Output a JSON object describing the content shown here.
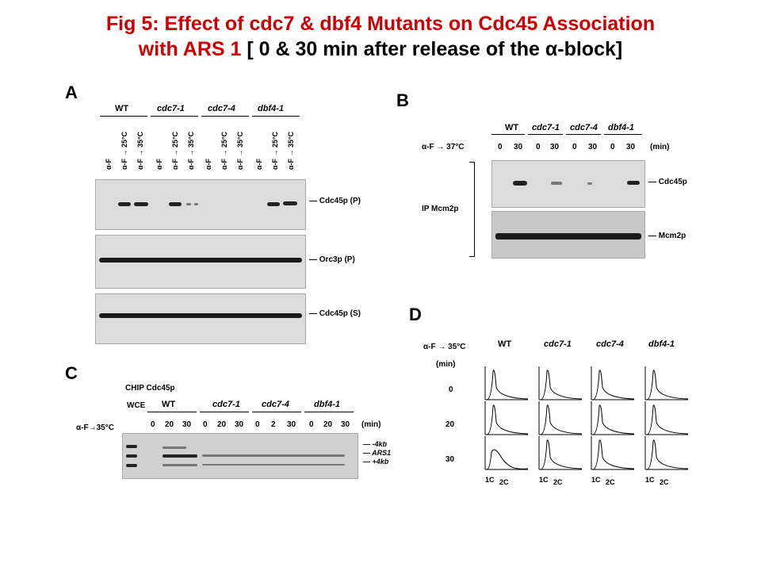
{
  "title": {
    "line1": "Fig 5: Effect of cdc7 & dbf4 Mutants on Cdc45 Association",
    "line2_red": "with ARS 1",
    "line2_rest": " [ 0 & 30 min after release of the  α-block]"
  },
  "panelA": {
    "label": "A",
    "groups": [
      "WT",
      "cdc7-1",
      "cdc7-4",
      "dbf4-1"
    ],
    "lanes": [
      "α-F",
      "α-F → 25°C",
      "α-F → 35°C"
    ],
    "rows": [
      "Cdc45p (P)",
      "Orc3p (P)",
      "Cdc45p (S)"
    ]
  },
  "panelB": {
    "label": "B",
    "groups": [
      "WT",
      "cdc7-1",
      "cdc7-4",
      "dbf4-1"
    ],
    "condition": "α-F → 37°C",
    "times": [
      "0",
      "30",
      "0",
      "30",
      "0",
      "30",
      "0",
      "30"
    ],
    "unit": "(min)",
    "side": "IP Mcm2p",
    "rows": [
      "Cdc45p",
      "Mcm2p"
    ]
  },
  "panelC": {
    "label": "C",
    "chip": "CHIP Cdc45p",
    "wce": "WCE",
    "groups": [
      "WT",
      "cdc7-1",
      "cdc7-4",
      "dbf4-1"
    ],
    "condition": "α-F→35°C",
    "times": [
      "0",
      "20",
      "30",
      "0",
      "20",
      "30",
      "0",
      "2",
      "30",
      "0",
      "20",
      "30"
    ],
    "unit": "(min)",
    "markers": [
      "-4kb",
      "ARS1",
      "+4kb"
    ]
  },
  "panelD": {
    "label": "D",
    "condition": "α-F → 35°C",
    "unit": "(min)",
    "columns": [
      "WT",
      "cdc7-1",
      "cdc7-4",
      "dbf4-1"
    ],
    "times": [
      "0",
      "20",
      "30"
    ],
    "ticks": [
      "1C",
      "2C"
    ]
  }
}
